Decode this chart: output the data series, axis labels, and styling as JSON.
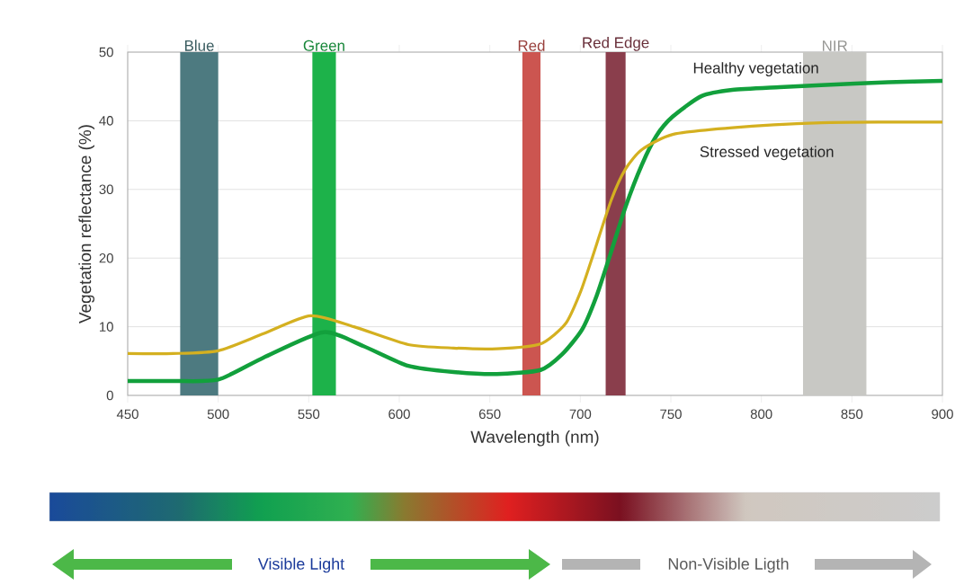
{
  "chart_data": {
    "type": "line",
    "xlabel": "Wavelength (nm)",
    "ylabel": "Vegetation reflectance (%)",
    "xlim": [
      450,
      900
    ],
    "ylim": [
      0,
      50
    ],
    "xticks": [
      450,
      500,
      550,
      600,
      650,
      700,
      750,
      800,
      850,
      900
    ],
    "yticks": [
      0,
      10,
      20,
      30,
      40,
      50
    ],
    "grid": "y",
    "legend": false,
    "marker": "none",
    "line_style": "solid",
    "series": [
      {
        "name": "Healthy vegetation",
        "color": "#12a03c",
        "x": [
          450,
          475,
          500,
          525,
          558,
          580,
          605,
          630,
          654,
          678,
          690,
          701,
          709,
          717,
          725,
          734,
          742,
          751,
          767,
          784,
          810,
          833,
          870,
          900
        ],
        "values": [
          2.1,
          2.1,
          2.3,
          5.5,
          9.2,
          7.2,
          4.3,
          3.4,
          3.1,
          3.7,
          6.0,
          9.6,
          14.5,
          20.9,
          27.5,
          33.6,
          37.8,
          40.6,
          43.6,
          44.5,
          44.9,
          45.2,
          45.6,
          45.8
        ]
      },
      {
        "name": "Stressed vegetation",
        "color": "#d4b020",
        "x": [
          450,
          475,
          500,
          525,
          551,
          575,
          605,
          630,
          654,
          678,
          692,
          700,
          706,
          717,
          725,
          734,
          751,
          784,
          833,
          870,
          900
        ],
        "values": [
          6.1,
          6.1,
          6.5,
          9.0,
          11.6,
          10.0,
          7.4,
          6.9,
          6.8,
          7.5,
          10.5,
          15.0,
          19.6,
          28.4,
          33.0,
          35.8,
          38.0,
          39.0,
          39.7,
          39.8,
          39.8
        ]
      }
    ],
    "bands": [
      {
        "axis": "x",
        "from": 479,
        "to": 500,
        "label": "Blue",
        "color": "#4d7a80"
      },
      {
        "axis": "x",
        "from": 552,
        "to": 565,
        "label": "Green",
        "color": "#1db24a"
      },
      {
        "axis": "x",
        "from": 668,
        "to": 678,
        "label": "Red",
        "color": "#cc5550"
      },
      {
        "axis": "x",
        "from": 714,
        "to": 725,
        "label": "Red Edge",
        "color": "#8a3e4c"
      },
      {
        "axis": "x",
        "from": 823,
        "to": 858,
        "label": "NIR",
        "color": "#c8c8c4"
      }
    ],
    "annotations": [
      "Visible Light",
      "Non-Visible Ligth"
    ]
  }
}
